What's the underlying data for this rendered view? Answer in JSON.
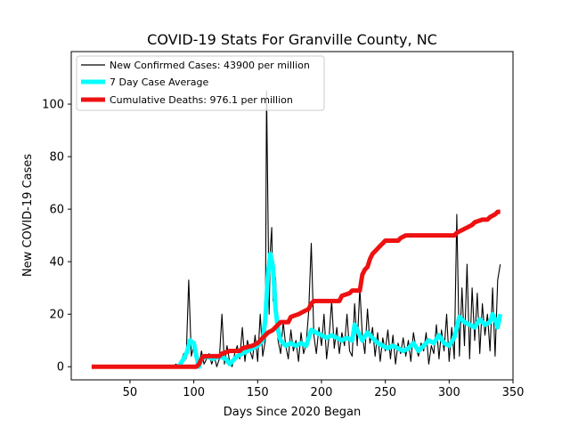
{
  "chart_data": {
    "type": "line",
    "title": "COVID-19 Stats For Granville County, NC",
    "xlabel": "Days Since 2020 Began",
    "ylabel": "New COVID-19 Cases",
    "xlim": [
      4,
      350
    ],
    "ylim": [
      -5,
      120
    ],
    "xticks": [
      50,
      100,
      150,
      200,
      250,
      300,
      350
    ],
    "yticks": [
      0,
      20,
      40,
      60,
      80,
      100
    ],
    "grid": false,
    "legend_placement": "top-left",
    "series": [
      {
        "name": "New Confirmed Cases: 43900 per million",
        "color": "#000000",
        "style": "thin-line",
        "points": [
          [
            20,
            0
          ],
          [
            84,
            0
          ],
          [
            86,
            1
          ],
          [
            88,
            0
          ],
          [
            90,
            2
          ],
          [
            92,
            5
          ],
          [
            94,
            3
          ],
          [
            96,
            33
          ],
          [
            98,
            4
          ],
          [
            100,
            8
          ],
          [
            102,
            2
          ],
          [
            104,
            0
          ],
          [
            106,
            6
          ],
          [
            108,
            1
          ],
          [
            110,
            3
          ],
          [
            112,
            5
          ],
          [
            114,
            1
          ],
          [
            116,
            4
          ],
          [
            118,
            0
          ],
          [
            120,
            3
          ],
          [
            122,
            20
          ],
          [
            124,
            1
          ],
          [
            126,
            8
          ],
          [
            128,
            2
          ],
          [
            130,
            0
          ],
          [
            132,
            5
          ],
          [
            134,
            8
          ],
          [
            136,
            3
          ],
          [
            138,
            15
          ],
          [
            140,
            2
          ],
          [
            142,
            10
          ],
          [
            144,
            6
          ],
          [
            146,
            3
          ],
          [
            148,
            12
          ],
          [
            150,
            2
          ],
          [
            152,
            20
          ],
          [
            154,
            4
          ],
          [
            156,
            10
          ],
          [
            157,
            105
          ],
          [
            159,
            20
          ],
          [
            160,
            45
          ],
          [
            161,
            53
          ],
          [
            162,
            25
          ],
          [
            164,
            34
          ],
          [
            166,
            10
          ],
          [
            168,
            5
          ],
          [
            170,
            17
          ],
          [
            172,
            8
          ],
          [
            174,
            3
          ],
          [
            176,
            14
          ],
          [
            178,
            6
          ],
          [
            180,
            10
          ],
          [
            182,
            2
          ],
          [
            184,
            13
          ],
          [
            186,
            5
          ],
          [
            188,
            9
          ],
          [
            190,
            21
          ],
          [
            192,
            47
          ],
          [
            194,
            12
          ],
          [
            196,
            5
          ],
          [
            198,
            15
          ],
          [
            200,
            8
          ],
          [
            202,
            20
          ],
          [
            204,
            3
          ],
          [
            206,
            12
          ],
          [
            208,
            25
          ],
          [
            210,
            7
          ],
          [
            212,
            15
          ],
          [
            214,
            5
          ],
          [
            216,
            13
          ],
          [
            218,
            8
          ],
          [
            220,
            20
          ],
          [
            222,
            6
          ],
          [
            224,
            4
          ],
          [
            226,
            24
          ],
          [
            228,
            8
          ],
          [
            230,
            30
          ],
          [
            232,
            12
          ],
          [
            234,
            5
          ],
          [
            236,
            22
          ],
          [
            238,
            9
          ],
          [
            240,
            15
          ],
          [
            242,
            4
          ],
          [
            244,
            13
          ],
          [
            246,
            2
          ],
          [
            248,
            11
          ],
          [
            250,
            6
          ],
          [
            252,
            14
          ],
          [
            254,
            3
          ],
          [
            256,
            12
          ],
          [
            258,
            1
          ],
          [
            260,
            9
          ],
          [
            262,
            5
          ],
          [
            264,
            11
          ],
          [
            266,
            4
          ],
          [
            268,
            10
          ],
          [
            270,
            2
          ],
          [
            272,
            13
          ],
          [
            274,
            7
          ],
          [
            276,
            4
          ],
          [
            278,
            9
          ],
          [
            280,
            6
          ],
          [
            282,
            13
          ],
          [
            284,
            1
          ],
          [
            286,
            8
          ],
          [
            288,
            5
          ],
          [
            290,
            16
          ],
          [
            292,
            3
          ],
          [
            294,
            14
          ],
          [
            296,
            6
          ],
          [
            298,
            20
          ],
          [
            300,
            2
          ],
          [
            302,
            15
          ],
          [
            304,
            3
          ],
          [
            306,
            58
          ],
          [
            308,
            4
          ],
          [
            310,
            30
          ],
          [
            312,
            8
          ],
          [
            314,
            39
          ],
          [
            316,
            3
          ],
          [
            318,
            30
          ],
          [
            320,
            10
          ],
          [
            322,
            28
          ],
          [
            324,
            5
          ],
          [
            326,
            24
          ],
          [
            328,
            12
          ],
          [
            330,
            20
          ],
          [
            332,
            6
          ],
          [
            334,
            30
          ],
          [
            336,
            4
          ],
          [
            338,
            33
          ],
          [
            340,
            39
          ]
        ]
      },
      {
        "name": "7 Day Case Average",
        "color": "#00ffff",
        "style": "thick-line",
        "points": [
          [
            88,
            0
          ],
          [
            92,
            3
          ],
          [
            95,
            6
          ],
          [
            97,
            10
          ],
          [
            100,
            9
          ],
          [
            102,
            4
          ],
          [
            104,
            0
          ],
          [
            106,
            3
          ],
          [
            110,
            4
          ],
          [
            115,
            3
          ],
          [
            120,
            4
          ],
          [
            125,
            3
          ],
          [
            128,
            1
          ],
          [
            130,
            2
          ],
          [
            134,
            4
          ],
          [
            138,
            5
          ],
          [
            142,
            6
          ],
          [
            146,
            7
          ],
          [
            150,
            8
          ],
          [
            154,
            10
          ],
          [
            156,
            18
          ],
          [
            158,
            35
          ],
          [
            160,
            43
          ],
          [
            162,
            38
          ],
          [
            164,
            22
          ],
          [
            166,
            14
          ],
          [
            168,
            10
          ],
          [
            172,
            8
          ],
          [
            176,
            9
          ],
          [
            180,
            8
          ],
          [
            184,
            9
          ],
          [
            188,
            8
          ],
          [
            192,
            14
          ],
          [
            196,
            13
          ],
          [
            200,
            12
          ],
          [
            204,
            11
          ],
          [
            208,
            12
          ],
          [
            212,
            11
          ],
          [
            216,
            10
          ],
          [
            220,
            11
          ],
          [
            224,
            10
          ],
          [
            226,
            16
          ],
          [
            228,
            14
          ],
          [
            232,
            10
          ],
          [
            236,
            13
          ],
          [
            240,
            11
          ],
          [
            244,
            9
          ],
          [
            248,
            8
          ],
          [
            252,
            7
          ],
          [
            256,
            8
          ],
          [
            260,
            7
          ],
          [
            264,
            6
          ],
          [
            268,
            7
          ],
          [
            272,
            9
          ],
          [
            276,
            6
          ],
          [
            280,
            8
          ],
          [
            284,
            10
          ],
          [
            288,
            9
          ],
          [
            292,
            12
          ],
          [
            296,
            9
          ],
          [
            300,
            8
          ],
          [
            304,
            11
          ],
          [
            306,
            15
          ],
          [
            308,
            19
          ],
          [
            312,
            17
          ],
          [
            316,
            16
          ],
          [
            320,
            15
          ],
          [
            324,
            18
          ],
          [
            328,
            16
          ],
          [
            332,
            17
          ],
          [
            334,
            20
          ],
          [
            336,
            18
          ],
          [
            338,
            15
          ],
          [
            340,
            20
          ]
        ]
      },
      {
        "name": "Cumulative Deaths: 976.1 per million",
        "color": "#ee1111",
        "style": "thick-line",
        "points": [
          [
            20,
            0
          ],
          [
            102,
            0
          ],
          [
            104,
            1
          ],
          [
            106,
            3
          ],
          [
            108,
            4
          ],
          [
            120,
            4
          ],
          [
            122,
            5
          ],
          [
            128,
            6
          ],
          [
            136,
            6
          ],
          [
            138,
            7
          ],
          [
            146,
            8
          ],
          [
            150,
            9
          ],
          [
            152,
            10
          ],
          [
            154,
            11
          ],
          [
            158,
            13
          ],
          [
            162,
            14
          ],
          [
            166,
            16
          ],
          [
            168,
            17
          ],
          [
            174,
            17
          ],
          [
            176,
            19
          ],
          [
            182,
            20
          ],
          [
            186,
            21
          ],
          [
            190,
            22
          ],
          [
            192,
            24
          ],
          [
            194,
            25
          ],
          [
            214,
            25
          ],
          [
            216,
            27
          ],
          [
            222,
            28
          ],
          [
            224,
            29
          ],
          [
            230,
            29
          ],
          [
            232,
            35
          ],
          [
            234,
            37
          ],
          [
            236,
            38
          ],
          [
            238,
            41
          ],
          [
            240,
            43
          ],
          [
            242,
            44
          ],
          [
            244,
            45
          ],
          [
            246,
            46
          ],
          [
            248,
            47
          ],
          [
            250,
            48
          ],
          [
            260,
            48
          ],
          [
            262,
            49
          ],
          [
            266,
            50
          ],
          [
            304,
            50
          ],
          [
            306,
            51
          ],
          [
            310,
            52
          ],
          [
            314,
            53
          ],
          [
            318,
            54
          ],
          [
            320,
            55
          ],
          [
            326,
            56
          ],
          [
            330,
            56
          ],
          [
            332,
            57
          ],
          [
            336,
            58
          ],
          [
            338,
            59
          ],
          [
            340,
            59
          ]
        ]
      }
    ],
    "legend_entries": [
      "New Confirmed Cases: 43900 per million",
      "7 Day Case Average",
      "Cumulative Deaths: 976.1 per million"
    ]
  }
}
